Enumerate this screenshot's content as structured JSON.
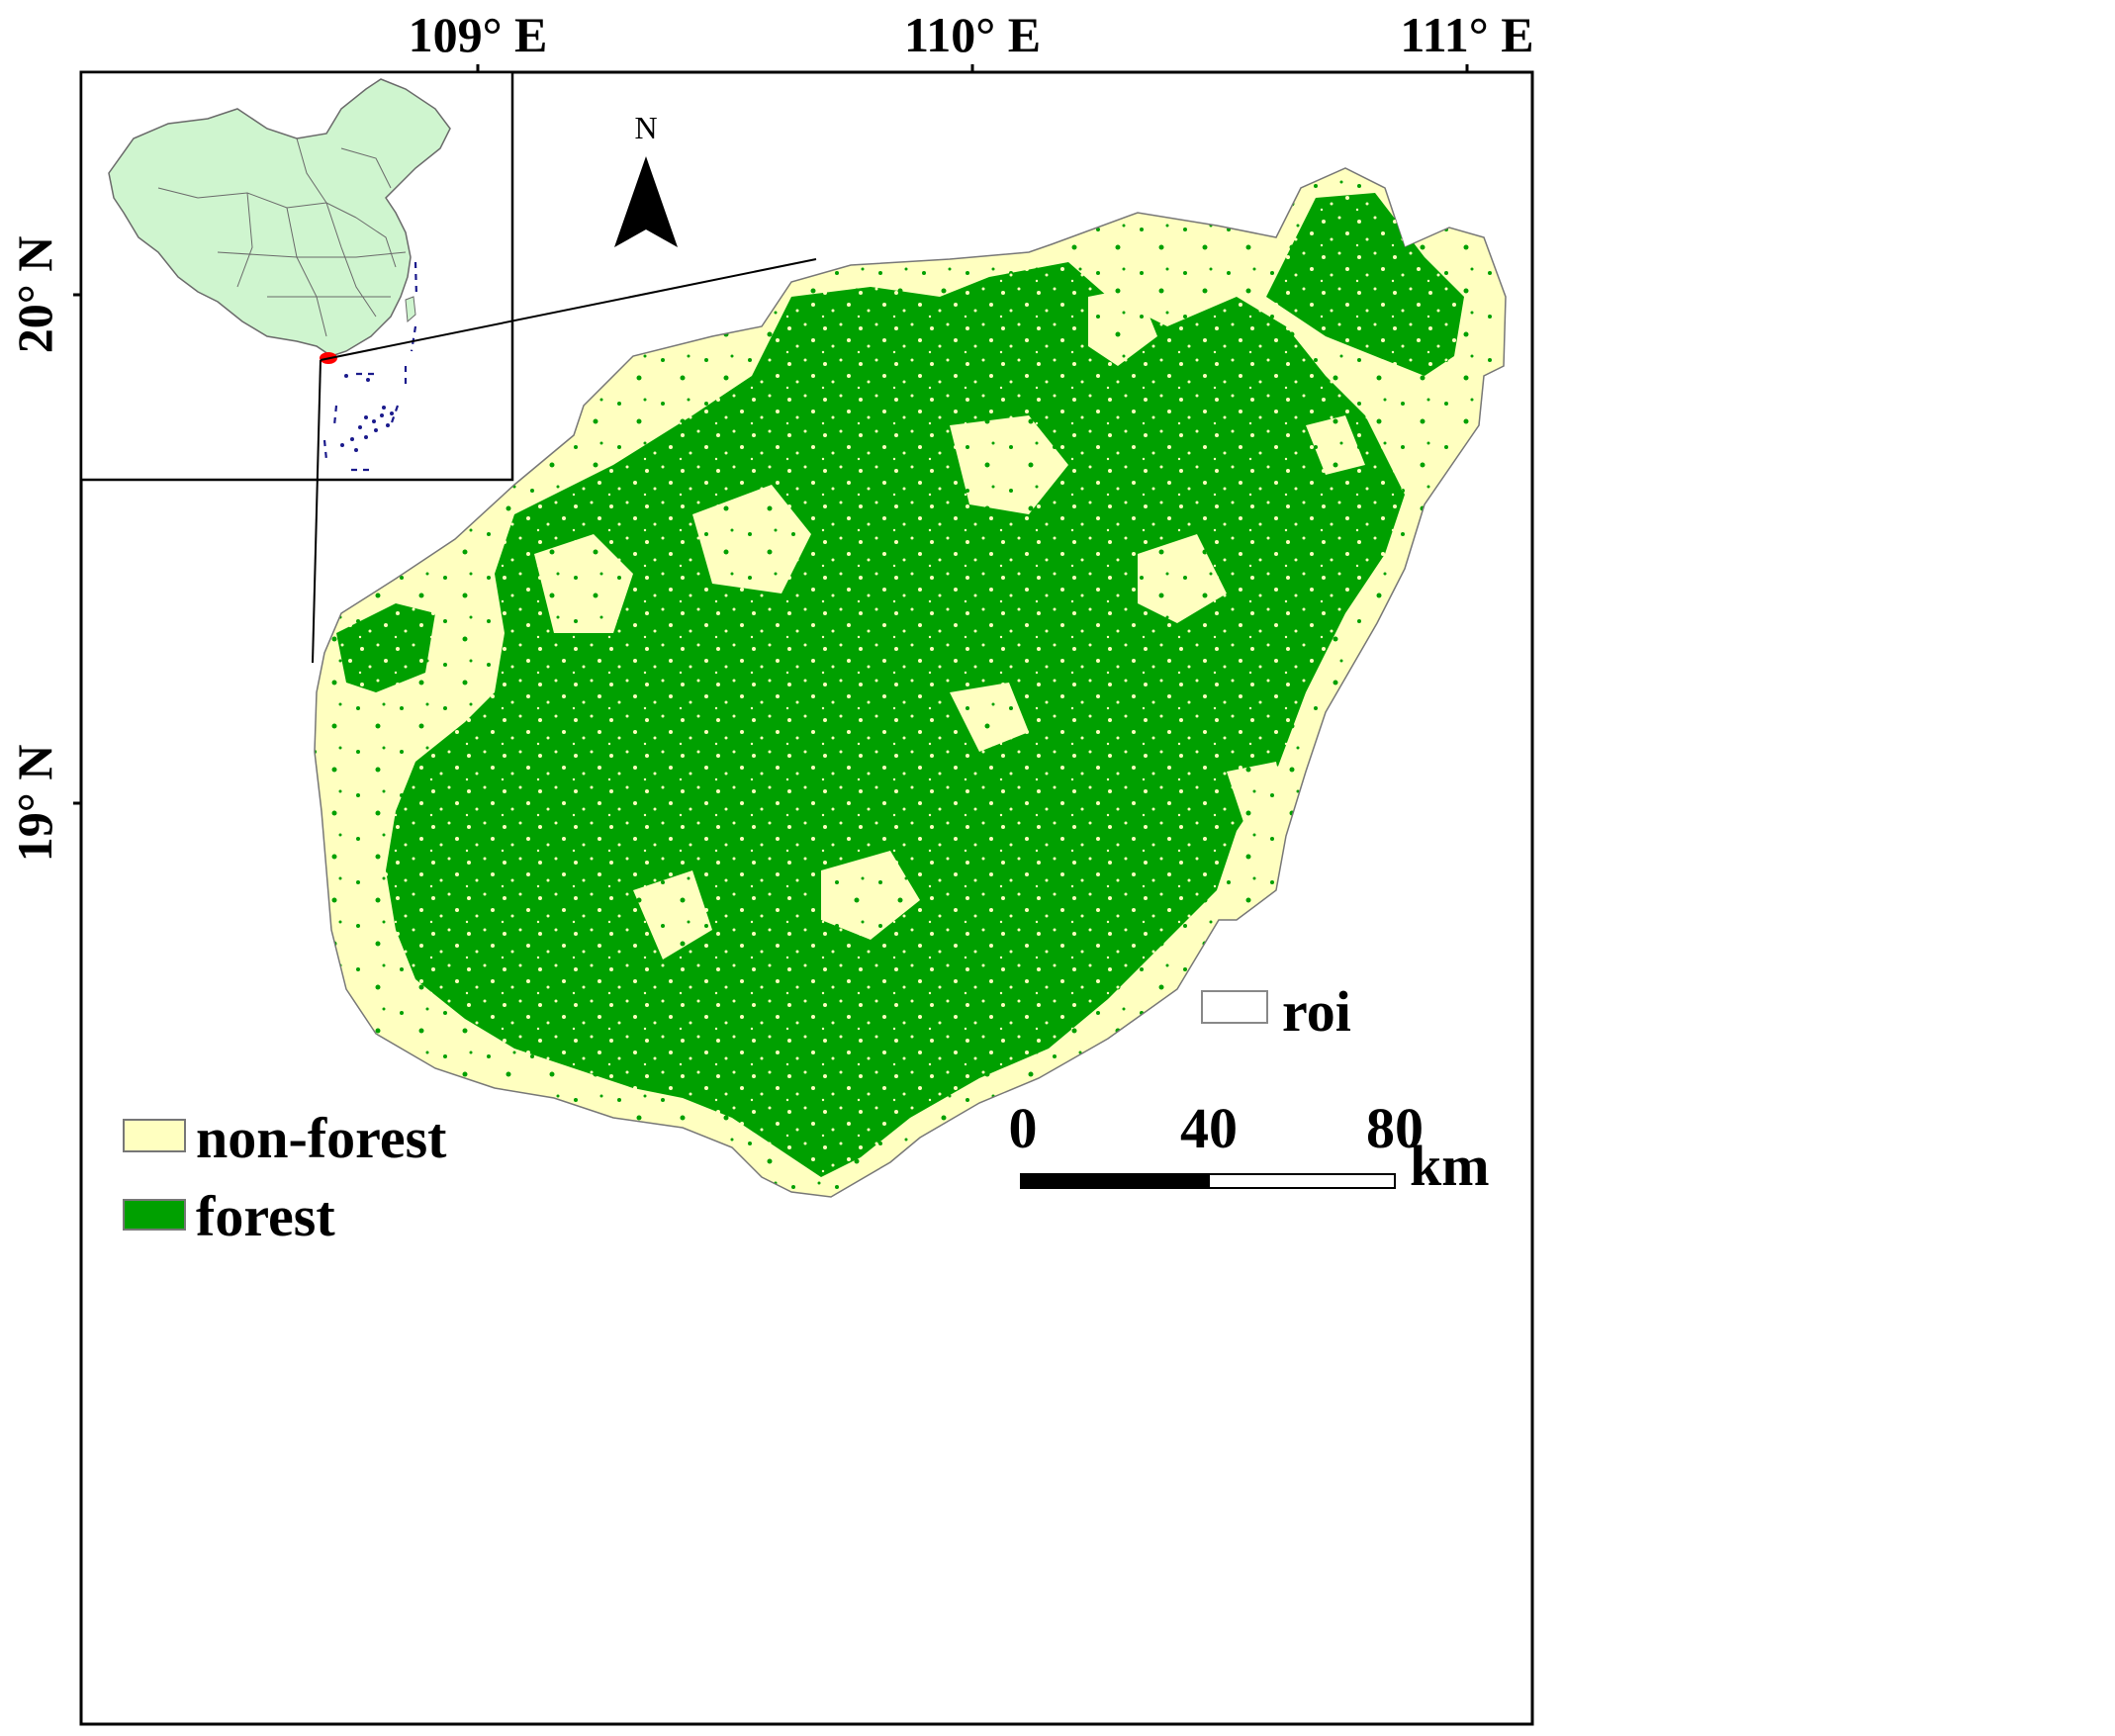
{
  "map": {
    "graticule": {
      "longitudes": [
        "109° E",
        "110° E",
        "111° E"
      ],
      "latitudes": [
        "20° N",
        "19° N"
      ]
    },
    "north_arrow": {
      "label": "N"
    },
    "legend": {
      "items": [
        {
          "label": "non-forest",
          "color": "#FFFFC0"
        },
        {
          "label": "forest",
          "color": "#00A000"
        }
      ],
      "roi": {
        "label": "roi",
        "color": "#FFFFFF"
      }
    },
    "scale_bar": {
      "ticks": [
        "0",
        "40",
        "80"
      ],
      "unit": "km"
    },
    "inset": {
      "land_color": "#CFF5CF",
      "highlight_color": "#FF0000",
      "boundary_color": "#1A1A8C"
    }
  }
}
